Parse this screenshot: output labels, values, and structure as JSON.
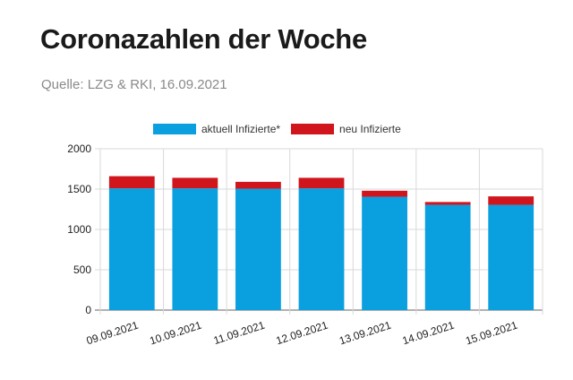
{
  "header": {
    "title": "Coronazahlen der Woche",
    "source": "Quelle: LZG & RKI, 16.09.2021"
  },
  "colors": {
    "aktuell": "#0aa0e0",
    "neu": "#d0151d",
    "grid": "#d9d9d9",
    "axis": "#666666"
  },
  "chart_data": {
    "type": "bar",
    "stacked": true,
    "categories": [
      "09.09.2021",
      "10.09.2021",
      "11.09.2021",
      "12.09.2021",
      "13.09.2021",
      "14.09.2021",
      "15.09.2021"
    ],
    "series": [
      {
        "name": "aktuell Infizierte*",
        "color": "#0aa0e0",
        "values": [
          1510,
          1510,
          1505,
          1510,
          1405,
          1305,
          1305
        ]
      },
      {
        "name": "neu Infizierte",
        "color": "#d0151d",
        "values": [
          150,
          130,
          85,
          130,
          75,
          35,
          105
        ]
      }
    ],
    "ylim": [
      0,
      2000
    ],
    "yticks": [
      0,
      500,
      1000,
      1500,
      2000
    ],
    "title": "",
    "xlabel": "",
    "ylabel": "",
    "legend": "top",
    "grid": true
  }
}
